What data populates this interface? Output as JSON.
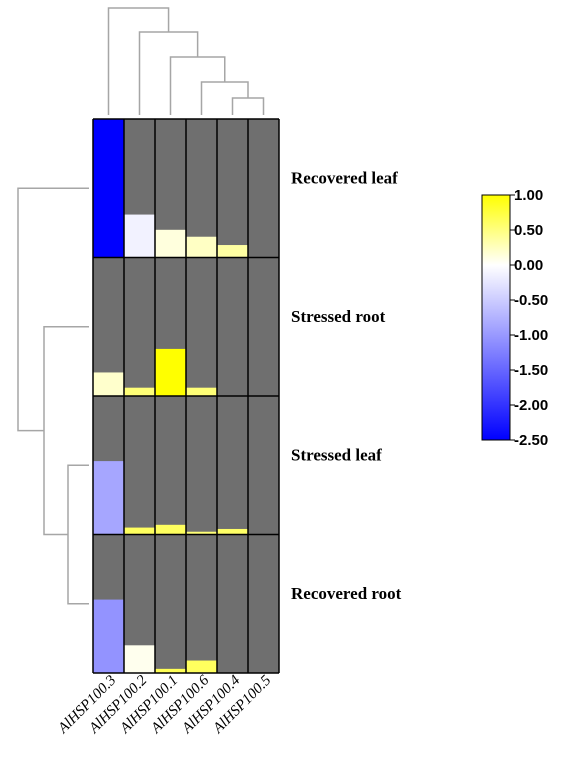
{
  "chart_data": {
    "type": "heatmap",
    "title": "",
    "columns": [
      "AlHSP100.3",
      "AlHSP100.2",
      "AlHSP100.1",
      "AlHSP100.6",
      "AlHSP100.4",
      "AlHSP100.5"
    ],
    "rows": [
      "Recovered leaf",
      "Stressed root",
      "Stressed leaf",
      "Recovered root"
    ],
    "values": [
      [
        -2.5,
        -0.6,
        -0.3,
        -0.15,
        0.05,
        null
      ],
      [
        -0.2,
        0.3,
        1.0,
        0.3,
        null,
        null
      ],
      [
        -1.2,
        0.45,
        0.45,
        0.3,
        0.4,
        null
      ],
      [
        -1.35,
        -0.4,
        0.5,
        0.45,
        null,
        null
      ]
    ],
    "bar_fractions": [
      [
        1.0,
        0.31,
        0.2,
        0.15,
        0.09,
        0.0
      ],
      [
        0.17,
        0.06,
        0.34,
        0.06,
        0.0,
        0.0
      ],
      [
        0.53,
        0.05,
        0.07,
        0.02,
        0.04,
        0.0
      ],
      [
        0.53,
        0.2,
        0.03,
        0.09,
        0.0,
        0.0
      ]
    ],
    "colorbar": {
      "min": -2.5,
      "max": 1.0,
      "ticks": [
        "1.00",
        "0.50",
        "0.00",
        "-0.50",
        "-1.00",
        "-1.50",
        "-2.00",
        "-2.50"
      ],
      "colors": [
        "#0000ff",
        "#ffffff",
        "#ffff00"
      ]
    },
    "background_color": "#6f6f6f",
    "dendrogram_color": "#a6a6a6"
  }
}
